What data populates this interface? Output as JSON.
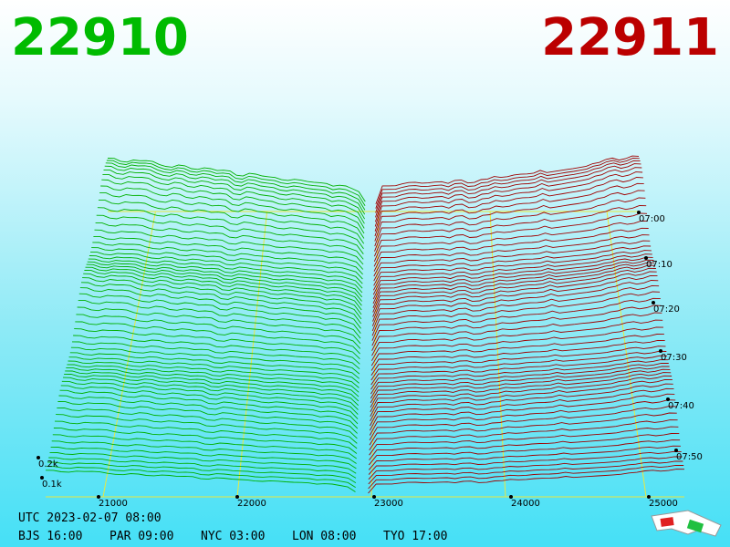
{
  "header": {
    "bid": "22910",
    "ask": "22911"
  },
  "axis": {
    "price_labels": [
      "21000",
      "22000",
      "23000",
      "24000",
      "25000"
    ],
    "time_labels": [
      "07:00",
      "07:10",
      "07:20",
      "07:30",
      "07:40",
      "07:50"
    ],
    "depth_labels": [
      "0.2k",
      "0.1k"
    ]
  },
  "footer": {
    "utc": "UTC 2023-02-07 08:00",
    "cities": [
      "BJS 16:00",
      "PAR 09:00",
      "NYC 03:00",
      "LON 08:00",
      "TYO 17:00"
    ]
  }
}
